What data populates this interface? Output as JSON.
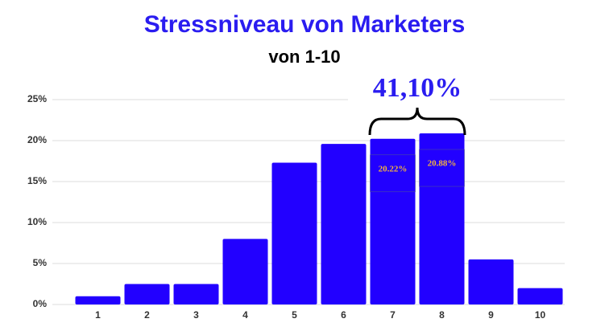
{
  "chart_data": {
    "type": "bar",
    "title": "Stressniveau von Marketers",
    "subtitle": "von 1-10",
    "annotation": "41,10%",
    "categories": [
      "1",
      "2",
      "3",
      "4",
      "5",
      "6",
      "7",
      "8",
      "9",
      "10"
    ],
    "values": [
      1.0,
      2.5,
      2.5,
      8.0,
      17.3,
      19.6,
      20.22,
      20.88,
      5.5,
      2.0
    ],
    "value_labels": [
      null,
      null,
      null,
      null,
      null,
      null,
      "20.22%",
      "20.88%",
      null,
      null
    ],
    "color": "#2200ff",
    "ylim": [
      0,
      25
    ],
    "yticks": [
      {
        "value": 0,
        "label": "0%"
      },
      {
        "value": 5,
        "label": "5%"
      },
      {
        "value": 10,
        "label": "10%"
      },
      {
        "value": 15,
        "label": "15%"
      },
      {
        "value": 20,
        "label": "20%"
      },
      {
        "value": 25,
        "label": "25%"
      }
    ],
    "grid": true
  }
}
